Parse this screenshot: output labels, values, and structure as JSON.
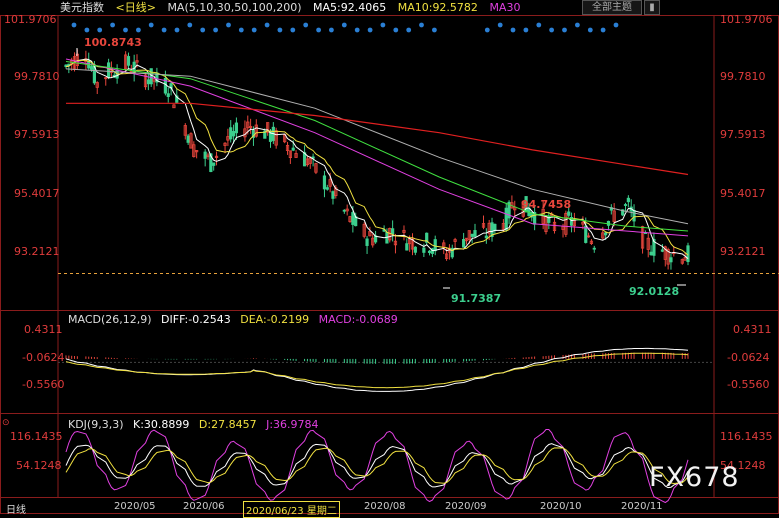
{
  "header": {
    "title": "美元指数",
    "period": "<日线>",
    "ma_label": "MA(5,10,30,50,100,200)",
    "ma5": "MA5:92.4065",
    "ma10": "MA10:92.5782",
    "ma30": "MA30",
    "theme_button": "全部主题",
    "bookmark_icon": "bookmark-icon"
  },
  "price_axis": {
    "ticks": [
      "101.9706",
      "99.7810",
      "97.5913",
      "95.4017",
      "93.2121"
    ]
  },
  "annotations": {
    "high": "100.8743",
    "low1": "91.7387",
    "peak": "94.7458",
    "low2": "92.0128"
  },
  "macd_panel": {
    "label": "MACD(26,12,9)",
    "diff": "DIFF:-0.2543",
    "dea": "DEA:-0.2199",
    "macd": "MACD:-0.0689",
    "ticks": [
      "0.4311",
      "-0.0624",
      "-0.5560"
    ]
  },
  "kdj_panel": {
    "label": "KDJ(9,3,3)",
    "k": "K:30.8899",
    "d": "D:27.8457",
    "j": "J:36.9784",
    "ticks": [
      "116.1435",
      "54.1248"
    ]
  },
  "x_axis": {
    "period_label": "日线",
    "labels": [
      "2020/05",
      "2020/06",
      "2020/06/23 星期二",
      "2020/08",
      "2020/09",
      "2020/10",
      "2020/11"
    ]
  },
  "watermark": "FX678",
  "colors": {
    "up": "#e8463c",
    "down": "#3ccf8e",
    "ma5": "#ffffff",
    "ma10": "#f0e040",
    "ma30": "#e040e0",
    "ma50": "#40e040",
    "ma100": "#b0b0b0",
    "ma200": "#e02020",
    "accent_blue": "#2a7fd4"
  },
  "chart_data": {
    "type": "candlestick",
    "title": "美元指数",
    "x_range": [
      "2020/04/20",
      "2020/11/25"
    ],
    "ylim": [
      90.9,
      101.97
    ],
    "close_path": [
      [
        "2020/04/20",
        100.0
      ],
      [
        "2020/04/27",
        100.6
      ],
      [
        "2020/05/01",
        99.3
      ],
      [
        "2020/05/05",
        99.8
      ],
      [
        "2020/05/12",
        100.1
      ],
      [
        "2020/05/18",
        99.6
      ],
      [
        "2020/05/26",
        99.2
      ],
      [
        "2020/05/29",
        98.5
      ],
      [
        "2020/06/04",
        96.7
      ],
      [
        "2020/06/10",
        96.1
      ],
      [
        "2020/06/16",
        97.0
      ],
      [
        "2020/06/23",
        97.6
      ],
      [
        "2020/06/30",
        97.3
      ],
      [
        "2020/07/07",
        96.8
      ],
      [
        "2020/07/14",
        96.2
      ],
      [
        "2020/07/21",
        95.2
      ],
      [
        "2020/07/28",
        93.9
      ],
      [
        "2020/08/05",
        93.0
      ],
      [
        "2020/08/12",
        93.3
      ],
      [
        "2020/08/19",
        92.9
      ],
      [
        "2020/08/26",
        92.8
      ],
      [
        "2020/09/01",
        92.4
      ],
      [
        "2020/09/08",
        93.1
      ],
      [
        "2020/09/15",
        93.2
      ],
      [
        "2020/09/22",
        93.8
      ],
      [
        "2020/09/25",
        94.6
      ],
      [
        "2020/10/02",
        94.0
      ],
      [
        "2020/10/09",
        93.5
      ],
      [
        "2020/10/16",
        93.7
      ],
      [
        "2020/10/23",
        92.9
      ],
      [
        "2020/10/30",
        94.0
      ],
      [
        "2020/11/04",
        94.3
      ],
      [
        "2020/11/10",
        92.8
      ],
      [
        "2020/11/18",
        92.4
      ],
      [
        "2020/11/25",
        92.3
      ]
    ],
    "ma_lines": {
      "ma30": [
        [
          0,
          100.3
        ],
        [
          0.2,
          99.2
        ],
        [
          0.4,
          97.3
        ],
        [
          0.6,
          95.0
        ],
        [
          0.75,
          93.6
        ],
        [
          0.9,
          93.3
        ],
        [
          1,
          93.1
        ]
      ],
      "ma50": [
        [
          0,
          100.2
        ],
        [
          0.2,
          99.5
        ],
        [
          0.4,
          97.8
        ],
        [
          0.6,
          95.5
        ],
        [
          0.75,
          94.0
        ],
        [
          0.9,
          93.5
        ],
        [
          1,
          93.3
        ]
      ],
      "ma100": [
        [
          0,
          99.9
        ],
        [
          0.2,
          99.6
        ],
        [
          0.4,
          98.3
        ],
        [
          0.6,
          96.3
        ],
        [
          0.75,
          95.0
        ],
        [
          0.9,
          94.1
        ],
        [
          1,
          93.6
        ]
      ],
      "ma200": [
        [
          0,
          98.5
        ],
        [
          0.2,
          98.5
        ],
        [
          0.4,
          98.0
        ],
        [
          0.6,
          97.3
        ],
        [
          0.75,
          96.6
        ],
        [
          0.9,
          96.0
        ],
        [
          1,
          95.6
        ]
      ]
    }
  }
}
